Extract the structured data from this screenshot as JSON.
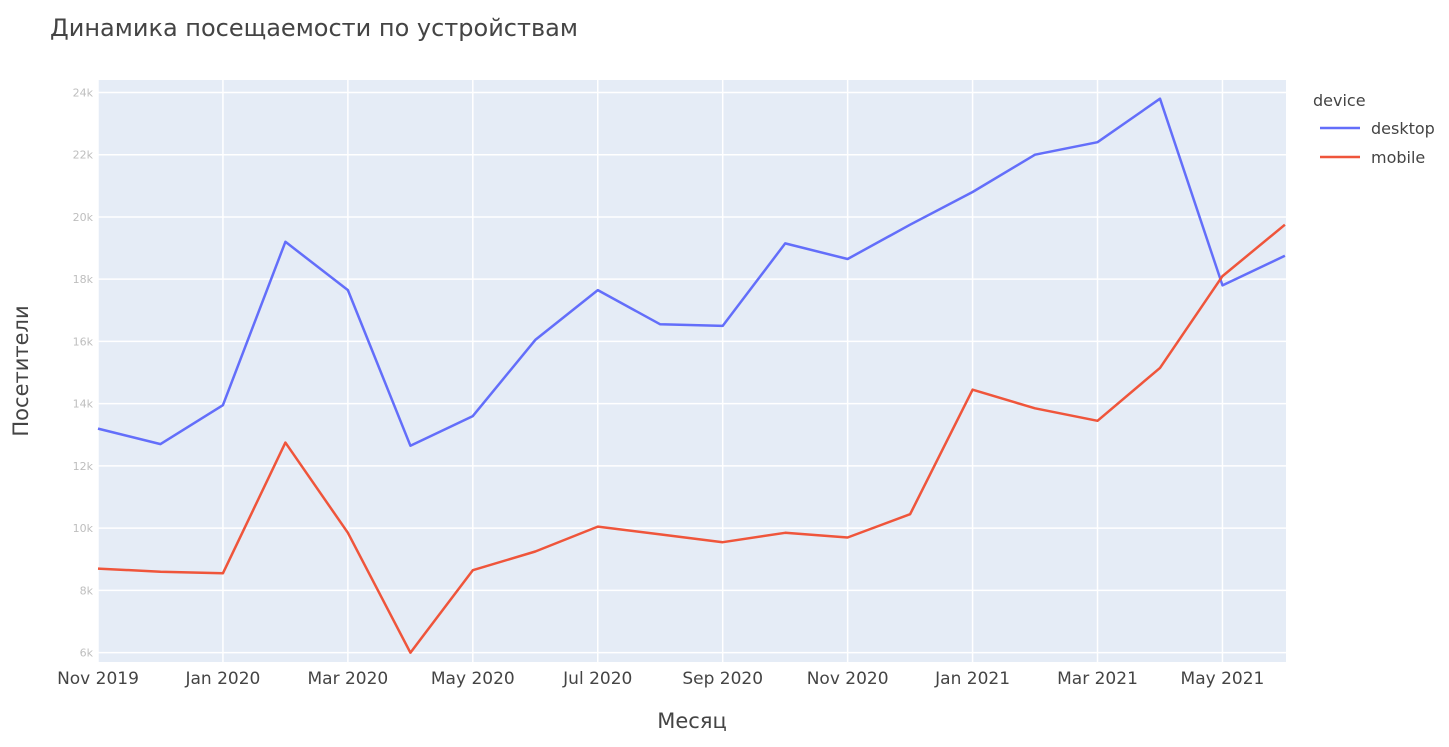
{
  "chart_data": {
    "type": "line",
    "title": "Динамика посещаемости по устройствам",
    "xlabel": "Месяц",
    "ylabel": "Посетители",
    "x": [
      "2019-11",
      "2019-12",
      "2020-01",
      "2020-02",
      "2020-03",
      "2020-04",
      "2020-05",
      "2020-06",
      "2020-07",
      "2020-08",
      "2020-09",
      "2020-10",
      "2020-11",
      "2020-12",
      "2021-01",
      "2021-02",
      "2021-03",
      "2021-04",
      "2021-05",
      "2021-06"
    ],
    "x_ticks": [
      {
        "x": "2019-11",
        "label": "Nov 2019"
      },
      {
        "x": "2020-01",
        "label": "Jan 2020"
      },
      {
        "x": "2020-03",
        "label": "Mar 2020"
      },
      {
        "x": "2020-05",
        "label": "May 2020"
      },
      {
        "x": "2020-07",
        "label": "Jul 2020"
      },
      {
        "x": "2020-09",
        "label": "Sep 2020"
      },
      {
        "x": "2020-11",
        "label": "Nov 2020"
      },
      {
        "x": "2021-01",
        "label": "Jan 2021"
      },
      {
        "x": "2021-03",
        "label": "Mar 2021"
      },
      {
        "x": "2021-05",
        "label": "May 2021"
      }
    ],
    "y_ticks": [
      {
        "y": 6000,
        "label": "6k"
      },
      {
        "y": 8000,
        "label": "8k"
      },
      {
        "y": 10000,
        "label": "10k"
      },
      {
        "y": 12000,
        "label": "12k"
      },
      {
        "y": 14000,
        "label": "14k"
      },
      {
        "y": 16000,
        "label": "16k"
      },
      {
        "y": 18000,
        "label": "18k"
      },
      {
        "y": 20000,
        "label": "20k"
      },
      {
        "y": 22000,
        "label": "22k"
      },
      {
        "y": 24000,
        "label": "24k"
      }
    ],
    "ylim": [
      5700,
      24400
    ],
    "grid": true,
    "legend": {
      "title": "device",
      "position": "right"
    },
    "series": [
      {
        "name": "desktop",
        "color": "#636efa",
        "values": [
          13200,
          12700,
          13950,
          19200,
          17650,
          12650,
          13600,
          16050,
          17650,
          16550,
          16500,
          19150,
          18650,
          19750,
          20800,
          22000,
          22400,
          23800,
          17800,
          18750
        ]
      },
      {
        "name": "mobile",
        "color": "#ef553b",
        "values": [
          8700,
          8600,
          8550,
          12750,
          9850,
          6000,
          8650,
          9250,
          10050,
          9800,
          9550,
          9850,
          9700,
          10450,
          14450,
          13850,
          13450,
          15150,
          18100,
          19750
        ]
      }
    ]
  }
}
